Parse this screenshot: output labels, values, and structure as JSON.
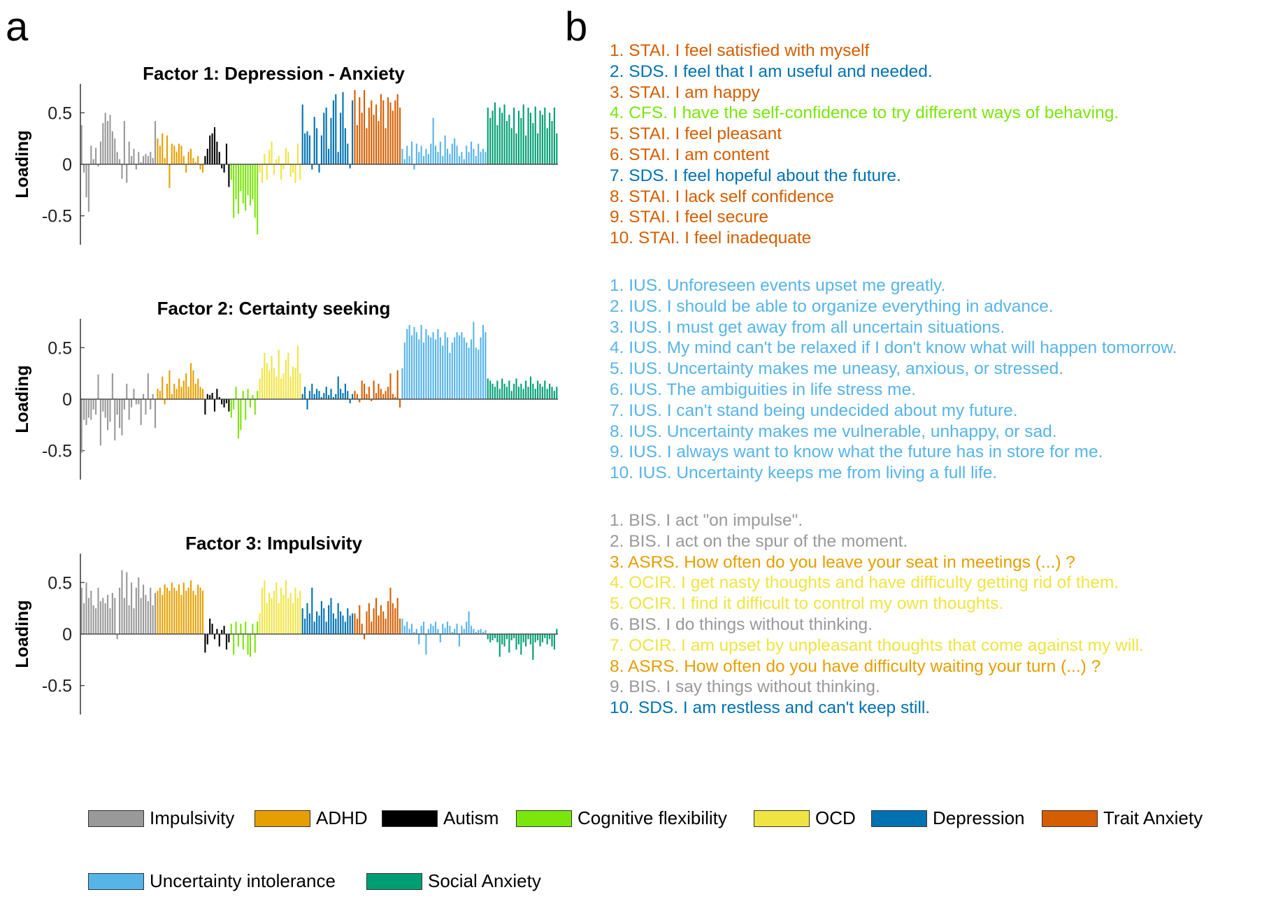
{
  "panel_labels": {
    "a": "a",
    "b": "b"
  },
  "colors": {
    "Impulsivity": "#999999",
    "ADHD": "#E69F00",
    "Autism": "#000000",
    "Cognitive flexibility": "#7AE60C",
    "OCD": "#F0E442",
    "Depression": "#0072B2",
    "Trait Anxiety": "#D55E00",
    "Uncertainty intolerance": "#56B4E9",
    "Social Anxiety": "#009E73"
  },
  "legend": [
    "Impulsivity",
    "ADHD",
    "Autism",
    "Cognitive flexibility",
    "OCD",
    "Depression",
    "Trait Anxiety",
    "Uncertainty intolerance",
    "Social Anxiety"
  ],
  "chart_data": [
    {
      "type": "bar",
      "title": "Factor 1: Depression - Anxiety",
      "ylabel": "Loading",
      "ylim": [
        -0.78,
        0.78
      ],
      "yticks": [
        0.5,
        0,
        -0.5
      ],
      "ytick_labels": [
        "0.5",
        "0",
        "-0.5"
      ],
      "series": [
        {
          "name": "Impulsivity",
          "values": [
            0.38,
            -0.08,
            -0.32,
            -0.46,
            0.18,
            0.05,
            0.16,
            -0.02,
            0.22,
            0.4,
            0.5,
            0.42,
            0.48,
            0.32,
            0.25,
            0.12,
            0.05,
            -0.14,
            0.42,
            -0.18,
            0.22,
            0.08,
            0.15,
            -0.05,
            0.12,
            0.02,
            0.08,
            0.1,
            0.08,
            0.12,
            0.06,
            0.42
          ]
        },
        {
          "name": "ADHD",
          "values": [
            0.25,
            0.18,
            0.3,
            0.06,
            0.28,
            -0.23,
            0.2,
            0.18,
            0.12,
            0.2,
            0.18,
            0.08,
            -0.08,
            0.12,
            0.15,
            0.06,
            0.02,
            0.08,
            -0.05,
            -0.08
          ]
        },
        {
          "name": "Autism",
          "values": [
            0.08,
            0.15,
            0.28,
            0.3,
            0.36,
            0.22,
            0.12,
            -0.04,
            -0.08,
            0.2,
            -0.22
          ]
        },
        {
          "name": "Cognitive flexibility",
          "values": [
            -0.15,
            -0.52,
            -0.34,
            -0.48,
            -0.26,
            -0.38,
            -0.45,
            -0.3,
            -0.4,
            -0.34,
            -0.52,
            -0.68
          ]
        },
        {
          "name": "OCD",
          "values": [
            -0.08,
            -0.18,
            0.1,
            -0.15,
            0.14,
            0.22,
            -0.1,
            0.05,
            0.08,
            -0.15,
            -0.05,
            0.16,
            0.12,
            -0.12,
            -0.08,
            -0.18,
            0.2,
            -0.15
          ]
        },
        {
          "name": "Depression",
          "values": [
            0.58,
            0.3,
            0.32,
            0.28,
            -0.05,
            0.46,
            0.35,
            -0.08,
            0.28,
            0.5,
            0.55,
            0.15,
            0.45,
            0.62,
            0.68,
            0.12,
            0.5,
            0.7,
            0.35,
            0.2,
            -0.04,
            0.62
          ]
        },
        {
          "name": "Trait Anxiety",
          "values": [
            0.72,
            0.38,
            0.65,
            0.5,
            0.72,
            0.35,
            0.55,
            0.62,
            0.48,
            0.58,
            0.42,
            0.68,
            0.62,
            0.35,
            0.65,
            0.6,
            0.52,
            0.62,
            0.68,
            0.55
          ]
        },
        {
          "name": "Uncertainty intolerance",
          "values": [
            0.15,
            0.05,
            0.18,
            0.08,
            0.22,
            -0.05,
            0.2,
            0.12,
            0.18,
            0.08,
            0.15,
            0.1,
            0.2,
            0.45,
            0.18,
            0.12,
            0.22,
            0.08,
            0.28,
            0.15,
            0.1,
            0.2,
            0.25,
            0.18,
            0.08,
            0.12,
            0.05,
            0.18,
            0.12,
            0.22,
            0.15,
            0.08,
            0.2,
            0.12,
            0.15,
            0.12
          ]
        },
        {
          "name": "Social Anxiety",
          "values": [
            0.55,
            0.45,
            0.52,
            0.6,
            0.38,
            0.55,
            0.5,
            0.58,
            0.42,
            0.48,
            0.35,
            0.55,
            0.3,
            0.52,
            0.45,
            0.58,
            0.28,
            0.55,
            0.5,
            0.4,
            0.56,
            0.3,
            0.52,
            0.48,
            0.55,
            0.35,
            0.5,
            0.42,
            0.55,
            0.3
          ]
        }
      ]
    },
    {
      "type": "bar",
      "title": "Factor 2: Certainty seeking",
      "ylabel": "Loading",
      "ylim": [
        -0.78,
        0.78
      ],
      "yticks": [
        0.5,
        0,
        -0.5
      ],
      "ytick_labels": [
        "0.5",
        "0",
        "-0.5"
      ],
      "series": [
        {
          "name": "Impulsivity",
          "values": [
            -0.52,
            -0.2,
            -0.25,
            -0.18,
            -0.2,
            -0.1,
            -0.15,
            0.24,
            -0.45,
            -0.12,
            -0.18,
            -0.3,
            -0.22,
            0.25,
            -0.4,
            -0.15,
            -0.28,
            -0.35,
            -0.1,
            0.15,
            -0.2,
            -0.08,
            0.1,
            -0.05,
            -0.05,
            -0.25,
            0.05,
            -0.15,
            0.25,
            -0.1,
            0.05,
            -0.28
          ]
        },
        {
          "name": "ADHD",
          "values": [
            0.1,
            0.08,
            0.22,
            -0.05,
            0.15,
            0.28,
            0.05,
            0.15,
            0.1,
            0.2,
            0.12,
            0.18,
            0.25,
            0.12,
            0.35,
            0.28,
            0.15,
            0.2,
            0.12,
            0.1
          ]
        },
        {
          "name": "Autism",
          "values": [
            -0.15,
            0.05,
            0.04,
            0.06,
            -0.12,
            0.1,
            0.02,
            -0.05,
            -0.08,
            -0.04,
            -0.12
          ]
        },
        {
          "name": "Cognitive flexibility",
          "values": [
            -0.18,
            -0.1,
            0.12,
            -0.38,
            -0.3,
            0.08,
            -0.2,
            0.1,
            -0.08,
            0.04,
            -0.15,
            0.08
          ]
        },
        {
          "name": "OCD",
          "values": [
            0.2,
            0.3,
            0.45,
            0.35,
            0.28,
            0.42,
            0.3,
            0.22,
            0.48,
            0.2,
            0.25,
            0.38,
            0.45,
            0.22,
            0.32,
            0.3,
            0.52,
            0.25
          ]
        },
        {
          "name": "Depression",
          "values": [
            0.05,
            0.12,
            -0.1,
            0.08,
            0.15,
            0.05,
            0.1,
            0.08,
            0.02,
            0.06,
            0.12,
            0.04,
            0.1,
            0.02,
            0.05,
            0.22,
            0.1,
            0.06,
            0.15,
            0.08,
            -0.04,
            0.05
          ]
        },
        {
          "name": "Trait Anxiety",
          "values": [
            0.08,
            0.05,
            -0.03,
            0.18,
            0.15,
            0.05,
            0.12,
            -0.02,
            0.18,
            0.06,
            0.15,
            0.1,
            0.05,
            0.08,
            0.12,
            0.25,
            0.05,
            0.02,
            0.28,
            -0.08
          ]
        },
        {
          "name": "Uncertainty intolerance",
          "values": [
            0.3,
            0.55,
            0.68,
            0.72,
            0.62,
            0.7,
            0.65,
            0.58,
            0.72,
            0.55,
            0.68,
            0.62,
            0.6,
            0.65,
            0.58,
            0.68,
            0.6,
            0.52,
            0.65,
            0.6,
            0.45,
            0.55,
            0.6,
            0.65,
            0.62,
            0.65,
            0.6,
            0.55,
            0.5,
            0.58,
            0.75,
            0.5,
            0.48,
            0.6,
            0.72,
            0.65
          ]
        },
        {
          "name": "Social Anxiety",
          "values": [
            0.2,
            0.18,
            0.15,
            0.12,
            0.18,
            0.1,
            0.2,
            0.15,
            0.12,
            0.18,
            0.08,
            0.15,
            0.2,
            0.12,
            0.15,
            0.1,
            0.18,
            0.12,
            0.22,
            0.15,
            0.1,
            0.18,
            0.15,
            0.12,
            0.18,
            0.1,
            0.15,
            0.12,
            0.08,
            0.12
          ]
        }
      ]
    },
    {
      "type": "bar",
      "title": "Factor 3: Impulsivity",
      "ylabel": "Loading",
      "ylim": [
        -0.78,
        0.78
      ],
      "yticks": [
        0.5,
        0,
        -0.5
      ],
      "ytick_labels": [
        "0.5",
        "0",
        "-0.5"
      ],
      "series": [
        {
          "name": "Impulsivity",
          "values": [
            0.45,
            0.3,
            0.5,
            0.35,
            0.42,
            0.28,
            0.25,
            0.45,
            0.32,
            0.35,
            0.3,
            0.38,
            0.25,
            0.4,
            0.35,
            -0.05,
            0.45,
            0.62,
            0.35,
            0.6,
            0.28,
            0.5,
            0.25,
            0.45,
            0.55,
            0.35,
            0.48,
            0.38,
            0.32,
            0.45,
            0.28,
            0.4
          ]
        },
        {
          "name": "ADHD",
          "values": [
            0.42,
            0.45,
            0.38,
            0.48,
            0.45,
            0.42,
            0.5,
            0.45,
            0.42,
            0.48,
            0.38,
            0.5,
            0.42,
            0.45,
            0.52,
            0.42,
            0.38,
            0.48,
            0.45,
            0.42
          ]
        },
        {
          "name": "Autism",
          "values": [
            -0.18,
            -0.1,
            0.15,
            0.1,
            -0.05,
            0.05,
            -0.12,
            0.04,
            0.08,
            -0.15,
            -0.08
          ]
        },
        {
          "name": "Cognitive flexibility",
          "values": [
            0.1,
            -0.2,
            0.12,
            -0.12,
            0.1,
            -0.15,
            0.12,
            -0.2,
            -0.22,
            0.1,
            -0.18,
            0.12
          ]
        },
        {
          "name": "OCD",
          "values": [
            0.2,
            0.45,
            0.52,
            0.3,
            0.4,
            0.35,
            0.42,
            0.5,
            0.3,
            0.45,
            0.38,
            0.52,
            0.35,
            0.4,
            0.3,
            0.45,
            0.35,
            0.42
          ]
        },
        {
          "name": "Depression",
          "values": [
            0.25,
            0.15,
            0.3,
            0.2,
            0.45,
            0.12,
            0.22,
            0.18,
            0.32,
            0.25,
            0.12,
            0.28,
            0.35,
            0.2,
            0.15,
            0.3,
            0.22,
            0.18,
            0.12,
            0.25,
            0.18,
            0.2
          ]
        },
        {
          "name": "Trait Anxiety",
          "values": [
            0.2,
            0.15,
            0.28,
            0.1,
            -0.05,
            0.22,
            0.3,
            0.12,
            0.25,
            0.35,
            0.18,
            0.28,
            0.22,
            0.15,
            0.32,
            0.45,
            0.3,
            0.25,
            0.35,
            0.15
          ]
        },
        {
          "name": "Uncertainty intolerance",
          "values": [
            0.15,
            0.08,
            0.12,
            0.05,
            0.1,
            0.02,
            0.05,
            -0.1,
            0.08,
            0.12,
            -0.2,
            0.05,
            0.1,
            0.08,
            0.12,
            0.05,
            -0.08,
            0.1,
            0.06,
            0.12,
            0.08,
            0.02,
            0.05,
            0.1,
            -0.12,
            0.08,
            0.05,
            0.12,
            0.22,
            0.08,
            0.05,
            0.02,
            0.04,
            0.05,
            0.02,
            0.04
          ]
        },
        {
          "name": "Social Anxiety",
          "values": [
            -0.05,
            -0.08,
            -0.06,
            -0.04,
            -0.08,
            -0.22,
            -0.1,
            -0.12,
            -0.05,
            -0.18,
            -0.06,
            -0.04,
            -0.15,
            -0.1,
            -0.2,
            -0.08,
            -0.12,
            -0.05,
            -0.1,
            -0.25,
            -0.08,
            -0.06,
            -0.12,
            -0.08,
            -0.04,
            -0.1,
            -0.05,
            -0.12,
            -0.15,
            0.05
          ]
        }
      ]
    }
  ],
  "item_lists": [
    [
      {
        "text": "1. STAI. I feel satisfied with myself",
        "scale": "Trait Anxiety"
      },
      {
        "text": "2. SDS. I feel that I am useful and needed.",
        "scale": "Depression"
      },
      {
        "text": "3. STAI. I am happy",
        "scale": "Trait Anxiety"
      },
      {
        "text": "4. CFS. I have the self-confidence to try different ways of behaving.",
        "scale": "Cognitive flexibility"
      },
      {
        "text": "5. STAI. I feel pleasant",
        "scale": "Trait Anxiety"
      },
      {
        "text": "6. STAI. I am content",
        "scale": "Trait Anxiety"
      },
      {
        "text": "7. SDS. I feel hopeful about the future.",
        "scale": "Depression"
      },
      {
        "text": "8. STAI. I lack self confidence",
        "scale": "Trait Anxiety"
      },
      {
        "text": "9. STAI. I feel secure",
        "scale": "Trait Anxiety"
      },
      {
        "text": "10. STAI. I feel inadequate",
        "scale": "Trait Anxiety"
      }
    ],
    [
      {
        "text": "1. IUS. Unforeseen events upset me greatly.",
        "scale": "Uncertainty intolerance"
      },
      {
        "text": "2. IUS. I should be able to organize everything in advance.",
        "scale": "Uncertainty intolerance"
      },
      {
        "text": "3. IUS. I must get away from all uncertain situations.",
        "scale": "Uncertainty intolerance"
      },
      {
        "text": "4. IUS. My mind can't be relaxed if I don't know what will happen tomorrow.",
        "scale": "Uncertainty intolerance"
      },
      {
        "text": "5. IUS. Uncertainty makes me uneasy, anxious, or stressed.",
        "scale": "Uncertainty intolerance"
      },
      {
        "text": "6. IUS. The ambiguities in life stress me.",
        "scale": "Uncertainty intolerance"
      },
      {
        "text": "7. IUS. I can't stand being undecided about my future.",
        "scale": "Uncertainty intolerance"
      },
      {
        "text": "8. IUS. Uncertainty makes me vulnerable, unhappy, or sad.",
        "scale": "Uncertainty intolerance"
      },
      {
        "text": "9. IUS. I always want to know what the future has in store for me.",
        "scale": "Uncertainty intolerance"
      },
      {
        "text": "10. IUS. Uncertainty keeps me from living a full life.",
        "scale": "Uncertainty intolerance"
      }
    ],
    [
      {
        "text": "1. BIS. I act \"on impulse\".",
        "scale": "Impulsivity"
      },
      {
        "text": "2. BIS. I act on the spur of the moment.",
        "scale": "Impulsivity"
      },
      {
        "text": "3. ASRS. How often do you leave your seat in meetings (...) ?",
        "scale": "ADHD"
      },
      {
        "text": "4. OCIR. I get nasty thoughts and have difficulty getting rid of them.",
        "scale": "OCD"
      },
      {
        "text": "5. OCIR. I find it difficult to control my own thoughts.",
        "scale": "OCD"
      },
      {
        "text": "6. BIS. I do things without thinking.",
        "scale": "Impulsivity"
      },
      {
        "text": "7. OCIR. I am upset by unpleasant thoughts that come against my will.",
        "scale": "OCD"
      },
      {
        "text": "8. ASRS. How often do you have difficulty waiting your turn (...) ?",
        "scale": "ADHD"
      },
      {
        "text": "9. BIS. I say things without thinking.",
        "scale": "Impulsivity"
      },
      {
        "text": "10. SDS. I am restless and can't keep still.",
        "scale": "Depression"
      }
    ]
  ]
}
